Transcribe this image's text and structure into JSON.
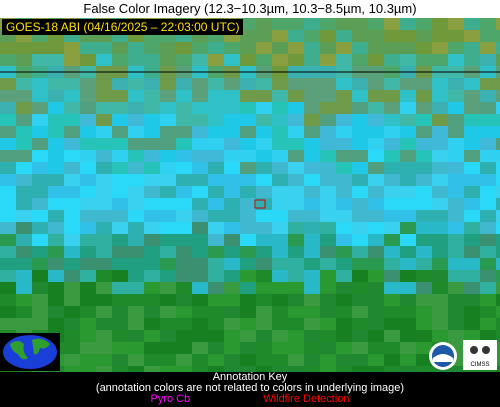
{
  "title": "False Color Imagery (12.3−10.3µm, 10.3−8.5µm, 10.3µm)",
  "satellite": "GOES-18 ABI (04/16/2025 – 22:03:00 UTC)",
  "annotation_key": {
    "title": "Annotation Key",
    "note": "(annotation colors are not related to colors in underlying image)",
    "items": [
      "Pyro Cb",
      "Wildfire Detection"
    ]
  },
  "logos": {
    "cimss": "CIMSS"
  }
}
